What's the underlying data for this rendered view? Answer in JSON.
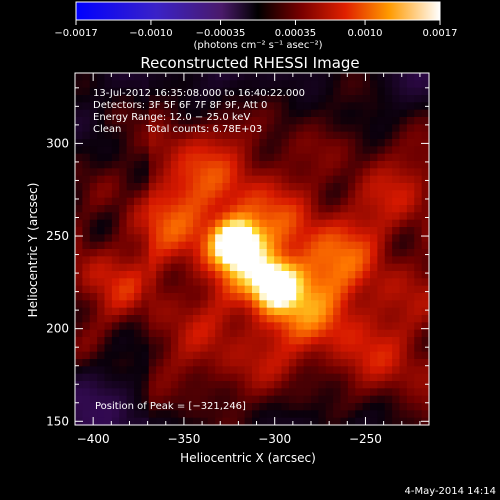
{
  "chart_data": {
    "type": "heatmap",
    "title": "Reconstructed RHESSI Image",
    "xlabel": "Heliocentric X (arcsec)",
    "ylabel": "Heliocentric Y (arcsec)",
    "xlim": [
      -410,
      -215
    ],
    "ylim": [
      148,
      338
    ],
    "xticks": [
      -400,
      -350,
      -300,
      -250
    ],
    "xtick_labels": [
      "−400",
      "−350",
      "−300",
      "−250"
    ],
    "yticks": [
      150,
      200,
      250,
      300
    ],
    "ytick_labels": [
      "150",
      "200",
      "250",
      "300"
    ],
    "colorbar": {
      "range": [
        -0.0017,
        0.0017
      ],
      "ticks": [
        -0.0017,
        -0.001,
        -0.00035,
        0.00035,
        0.001,
        0.0017
      ],
      "tick_labels": [
        "−0.0017",
        "−0.0010",
        "−0.00035",
        "0.00035",
        "0.0010",
        "0.0017"
      ],
      "unit_label": "(photons cm⁻² s⁻¹ asec⁻²)"
    },
    "sources": [
      {
        "x": -321,
        "y": 246,
        "peak": 0.0017
      },
      {
        "x": -300,
        "y": 224,
        "peak": 0.00135
      }
    ],
    "annotations": {
      "time_range": "13-Jul-2012 16:35:08.000 to 16:40:22.000",
      "detectors": "Detectors: 3F 5F 6F 7F 8F 9F, Att 0",
      "energy": "Energy Range: 12.0 − 25.0 keV",
      "method": "Clean",
      "counts": "Total counts: 6.78E+03",
      "peak": "Position of Peak = [−321,246]"
    },
    "timestamp": "4-May-2014 14:14"
  }
}
